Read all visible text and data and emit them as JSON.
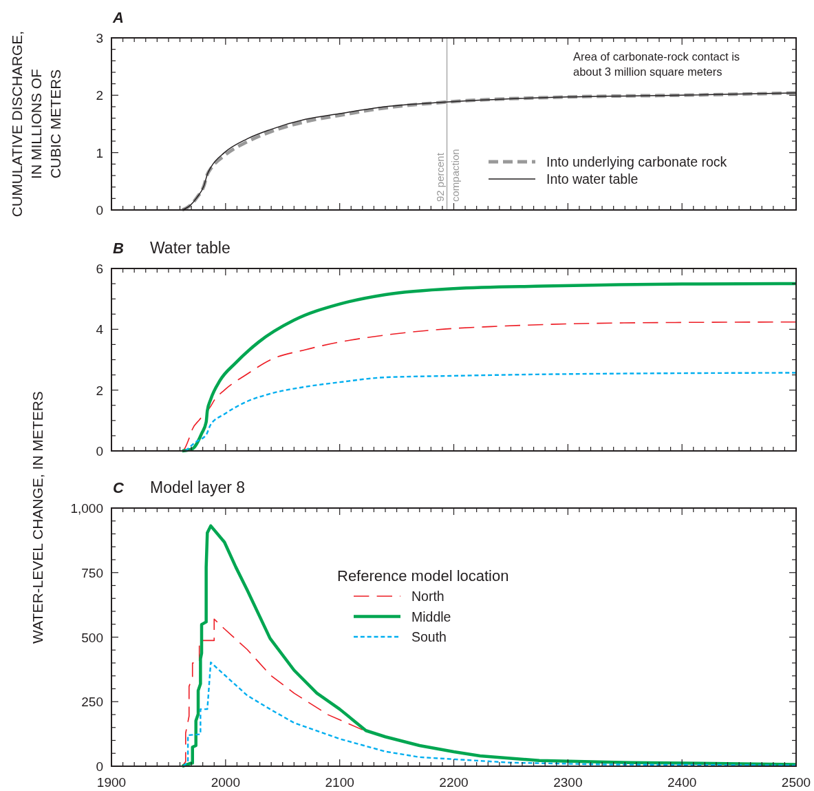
{
  "chart_data": [
    {
      "type": "line",
      "title": "A",
      "ylabel": "CUMULATIVE DISCHARGE, IN MILLIONS OF CUBIC METERS",
      "xlim": [
        1900,
        2500
      ],
      "ylim": [
        0,
        3
      ],
      "tick_labels": "y",
      "legend": "bottom right",
      "grid": false,
      "xticks": [
        1900,
        {
          "value": 1910,
          "label": null
        },
        {
          "value": 1920,
          "label": null
        },
        {
          "value": 1930,
          "label": null
        },
        {
          "value": 1940,
          "label": null
        },
        {
          "value": 1950,
          "label": null
        },
        {
          "value": 1960,
          "label": null
        },
        {
          "value": 1970,
          "label": null
        },
        {
          "value": 1980,
          "label": null
        },
        {
          "value": 1990,
          "label": null
        },
        2000,
        {
          "value": 2010,
          "label": null
        },
        {
          "value": 2020,
          "label": null
        },
        {
          "value": 2030,
          "label": null
        },
        {
          "value": 2040,
          "label": null
        },
        {
          "value": 2050,
          "label": null
        },
        {
          "value": 2060,
          "label": null
        },
        {
          "value": 2070,
          "label": null
        },
        {
          "value": 2080,
          "label": null
        },
        {
          "value": 2090,
          "label": null
        },
        2100,
        {
          "value": 2110,
          "label": null
        },
        {
          "value": 2120,
          "label": null
        },
        {
          "value": 2130,
          "label": null
        },
        {
          "value": 2140,
          "label": null
        },
        {
          "value": 2150,
          "label": null
        },
        {
          "value": 2160,
          "label": null
        },
        {
          "value": 2170,
          "label": null
        },
        {
          "value": 2180,
          "label": null
        },
        {
          "value": 2190,
          "label": null
        },
        2200,
        {
          "value": 2210,
          "label": null
        },
        {
          "value": 2220,
          "label": null
        },
        {
          "value": 2230,
          "label": null
        },
        {
          "value": 2240,
          "label": null
        },
        {
          "value": 2250,
          "label": null
        },
        {
          "value": 2260,
          "label": null
        },
        {
          "value": 2270,
          "label": null
        },
        {
          "value": 2280,
          "label": null
        },
        {
          "value": 2290,
          "label": null
        },
        2300,
        {
          "value": 2310,
          "label": null
        },
        {
          "value": 2320,
          "label": null
        },
        {
          "value": 2330,
          "label": null
        },
        {
          "value": 2340,
          "label": null
        },
        {
          "value": 2350,
          "label": null
        },
        {
          "value": 2360,
          "label": null
        },
        {
          "value": 2370,
          "label": null
        },
        {
          "value": 2380,
          "label": null
        },
        {
          "value": 2390,
          "label": null
        },
        2400,
        {
          "value": 2410,
          "label": null
        },
        {
          "value": 2420,
          "label": null
        },
        {
          "value": 2430,
          "label": null
        },
        {
          "value": 2440,
          "label": null
        },
        {
          "value": 2450,
          "label": null
        },
        {
          "value": 2460,
          "label": null
        },
        {
          "value": 2470,
          "label": null
        },
        {
          "value": 2480,
          "label": null
        },
        {
          "value": 2490,
          "label": null
        },
        2500
      ],
      "yticks": [
        0,
        {
          "value": 0.2,
          "label": null
        },
        {
          "value": 0.4,
          "label": null
        },
        {
          "value": 0.6,
          "label": null
        },
        {
          "value": 0.8,
          "label": null
        },
        1,
        {
          "value": 1.2,
          "label": null
        },
        {
          "value": 1.4,
          "label": null
        },
        {
          "value": 1.6,
          "label": null
        },
        {
          "value": 1.8,
          "label": null
        },
        2,
        {
          "value": 2.2,
          "label": null
        },
        {
          "value": 2.4,
          "label": null
        },
        {
          "value": 2.6,
          "label": null
        },
        {
          "value": 2.8,
          "label": null
        },
        3
      ],
      "series": [
        {
          "name": "Into underlying carbonate rock",
          "color": "#999999",
          "line_style": "dashed",
          "x": [
            1962,
            1969,
            1975,
            1981,
            1984,
            1987,
            1999,
            2019,
            2039,
            2070,
            2100,
            2140,
            2193,
            2300,
            2400,
            2500
          ],
          "values": [
            0,
            0.08,
            0.22,
            0.42,
            0.62,
            0.72,
            0.95,
            1.19,
            1.36,
            1.54,
            1.65,
            1.78,
            1.88,
            1.97,
            2.0,
            2.04
          ]
        },
        {
          "name": "Into water table",
          "color": "#231f20",
          "line_style": "solid",
          "x": [
            1962,
            1969,
            1975,
            1981,
            1984,
            1987,
            1999,
            2019,
            2039,
            2070,
            2100,
            2140,
            2193,
            2300,
            2400,
            2500
          ],
          "values": [
            0,
            0.08,
            0.22,
            0.42,
            0.62,
            0.74,
            1.0,
            1.24,
            1.4,
            1.58,
            1.68,
            1.8,
            1.88,
            1.97,
            2.0,
            2.04
          ]
        }
      ],
      "ref_lines": [
        {
          "axis": "x",
          "value": 2194,
          "label": "92 percent compaction",
          "color": "#999999"
        }
      ],
      "annotations": [
        "Area of carbonate-rock contact is about 3 million square meters"
      ]
    },
    {
      "type": "line",
      "title": "B",
      "subtitle": "Water table",
      "ylabel": "WATER-LEVEL CHANGE, IN METERS",
      "xlim": [
        1900,
        2500
      ],
      "ylim": [
        0,
        6
      ],
      "tick_labels": "y",
      "grid": false,
      "xticks": [
        1900,
        {
          "value": 1910,
          "label": null
        },
        {
          "value": 1920,
          "label": null
        },
        {
          "value": 1930,
          "label": null
        },
        {
          "value": 1940,
          "label": null
        },
        {
          "value": 1950,
          "label": null
        },
        {
          "value": 1960,
          "label": null
        },
        {
          "value": 1970,
          "label": null
        },
        {
          "value": 1980,
          "label": null
        },
        {
          "value": 1990,
          "label": null
        },
        2000,
        {
          "value": 2010,
          "label": null
        },
        {
          "value": 2020,
          "label": null
        },
        {
          "value": 2030,
          "label": null
        },
        {
          "value": 2040,
          "label": null
        },
        {
          "value": 2050,
          "label": null
        },
        {
          "value": 2060,
          "label": null
        },
        {
          "value": 2070,
          "label": null
        },
        {
          "value": 2080,
          "label": null
        },
        {
          "value": 2090,
          "label": null
        },
        2100,
        {
          "value": 2110,
          "label": null
        },
        {
          "value": 2120,
          "label": null
        },
        {
          "value": 2130,
          "label": null
        },
        {
          "value": 2140,
          "label": null
        },
        {
          "value": 2150,
          "label": null
        },
        {
          "value": 2160,
          "label": null
        },
        {
          "value": 2170,
          "label": null
        },
        {
          "value": 2180,
          "label": null
        },
        {
          "value": 2190,
          "label": null
        },
        2200,
        {
          "value": 2210,
          "label": null
        },
        {
          "value": 2220,
          "label": null
        },
        {
          "value": 2230,
          "label": null
        },
        {
          "value": 2240,
          "label": null
        },
        {
          "value": 2250,
          "label": null
        },
        {
          "value": 2260,
          "label": null
        },
        {
          "value": 2270,
          "label": null
        },
        {
          "value": 2280,
          "label": null
        },
        {
          "value": 2290,
          "label": null
        },
        2300,
        {
          "value": 2310,
          "label": null
        },
        {
          "value": 2320,
          "label": null
        },
        {
          "value": 2330,
          "label": null
        },
        {
          "value": 2340,
          "label": null
        },
        {
          "value": 2350,
          "label": null
        },
        {
          "value": 2360,
          "label": null
        },
        {
          "value": 2370,
          "label": null
        },
        {
          "value": 2380,
          "label": null
        },
        {
          "value": 2390,
          "label": null
        },
        2400,
        {
          "value": 2410,
          "label": null
        },
        {
          "value": 2420,
          "label": null
        },
        {
          "value": 2430,
          "label": null
        },
        {
          "value": 2440,
          "label": null
        },
        {
          "value": 2450,
          "label": null
        },
        {
          "value": 2460,
          "label": null
        },
        {
          "value": 2470,
          "label": null
        },
        {
          "value": 2480,
          "label": null
        },
        {
          "value": 2490,
          "label": null
        },
        2500
      ],
      "yticks": [
        0,
        {
          "value": 0.5,
          "label": null
        },
        {
          "value": 1,
          "label": null
        },
        {
          "value": 1.5,
          "label": null
        },
        2,
        {
          "value": 2.5,
          "label": null
        },
        {
          "value": 3,
          "label": null
        },
        {
          "value": 3.5,
          "label": null
        },
        4,
        {
          "value": 4.5,
          "label": null
        },
        {
          "value": 5,
          "label": null
        },
        {
          "value": 5.5,
          "label": null
        },
        6
      ],
      "series": [
        {
          "color": "#ed1c24",
          "line_style": "dashed",
          "x": [
            1962,
            1964,
            1968,
            1971,
            1977,
            1987,
            1990,
            1999,
            2019,
            2039,
            2070,
            2100,
            2140,
            2193,
            2233,
            2349,
            2500
          ],
          "values": [
            0,
            0.07,
            0.41,
            0.72,
            1.02,
            1.47,
            1.66,
            2.0,
            2.53,
            2.99,
            3.33,
            3.58,
            3.81,
            4.01,
            4.09,
            4.21,
            4.24
          ]
        },
        {
          "color": "#00a651",
          "line_style": "solid",
          "x": [
            1962,
            1971,
            1979,
            1983,
            1984,
            1987,
            1995,
            2009,
            2029,
            2060,
            2100,
            2140,
            2200,
            2279,
            2400,
            2500
          ],
          "values": [
            0,
            0.07,
            0.57,
            0.95,
            1.32,
            1.7,
            2.31,
            2.9,
            3.58,
            4.3,
            4.83,
            5.14,
            5.34,
            5.42,
            5.49,
            5.5
          ]
        },
        {
          "color": "#00aeef",
          "line_style": "dotted",
          "x": [
            1965,
            1967,
            1973,
            1983,
            1987,
            1999,
            2019,
            2039,
            2070,
            2100,
            2140,
            2200,
            2279,
            2500
          ],
          "values": [
            0,
            0.07,
            0.27,
            0.53,
            0.87,
            1.21,
            1.63,
            1.88,
            2.11,
            2.26,
            2.42,
            2.47,
            2.52,
            2.57
          ]
        }
      ]
    },
    {
      "type": "line",
      "title": "C",
      "subtitle": "Model layer 8",
      "xlim": [
        1900,
        2500
      ],
      "ylim": [
        0,
        1000
      ],
      "legend": "top",
      "legend_title": "Reference model location",
      "grid": false,
      "xticks": [
        1900,
        {
          "value": 1910,
          "label": null
        },
        {
          "value": 1920,
          "label": null
        },
        {
          "value": 1930,
          "label": null
        },
        {
          "value": 1940,
          "label": null
        },
        {
          "value": 1950,
          "label": null
        },
        {
          "value": 1960,
          "label": null
        },
        {
          "value": 1970,
          "label": null
        },
        {
          "value": 1980,
          "label": null
        },
        {
          "value": 1990,
          "label": null
        },
        2000,
        {
          "value": 2010,
          "label": null
        },
        {
          "value": 2020,
          "label": null
        },
        {
          "value": 2030,
          "label": null
        },
        {
          "value": 2040,
          "label": null
        },
        {
          "value": 2050,
          "label": null
        },
        {
          "value": 2060,
          "label": null
        },
        {
          "value": 2070,
          "label": null
        },
        {
          "value": 2080,
          "label": null
        },
        {
          "value": 2090,
          "label": null
        },
        2100,
        {
          "value": 2110,
          "label": null
        },
        {
          "value": 2120,
          "label": null
        },
        {
          "value": 2130,
          "label": null
        },
        {
          "value": 2140,
          "label": null
        },
        {
          "value": 2150,
          "label": null
        },
        {
          "value": 2160,
          "label": null
        },
        {
          "value": 2170,
          "label": null
        },
        {
          "value": 2180,
          "label": null
        },
        {
          "value": 2190,
          "label": null
        },
        2200,
        {
          "value": 2210,
          "label": null
        },
        {
          "value": 2220,
          "label": null
        },
        {
          "value": 2230,
          "label": null
        },
        {
          "value": 2240,
          "label": null
        },
        {
          "value": 2250,
          "label": null
        },
        {
          "value": 2260,
          "label": null
        },
        {
          "value": 2270,
          "label": null
        },
        {
          "value": 2280,
          "label": null
        },
        {
          "value": 2290,
          "label": null
        },
        2300,
        {
          "value": 2310,
          "label": null
        },
        {
          "value": 2320,
          "label": null
        },
        {
          "value": 2330,
          "label": null
        },
        {
          "value": 2340,
          "label": null
        },
        {
          "value": 2350,
          "label": null
        },
        {
          "value": 2360,
          "label": null
        },
        {
          "value": 2370,
          "label": null
        },
        {
          "value": 2380,
          "label": null
        },
        {
          "value": 2390,
          "label": null
        },
        2400,
        {
          "value": 2410,
          "label": null
        },
        {
          "value": 2420,
          "label": null
        },
        {
          "value": 2430,
          "label": null
        },
        {
          "value": 2440,
          "label": null
        },
        {
          "value": 2450,
          "label": null
        },
        {
          "value": 2460,
          "label": null
        },
        {
          "value": 2470,
          "label": null
        },
        {
          "value": 2480,
          "label": null
        },
        {
          "value": 2490,
          "label": null
        },
        2500
      ],
      "yticks": [
        0,
        {
          "value": 50,
          "label": null
        },
        {
          "value": 100,
          "label": null
        },
        {
          "value": 150,
          "label": null
        },
        {
          "value": 200,
          "label": null
        },
        250,
        {
          "value": 300,
          "label": null
        },
        {
          "value": 350,
          "label": null
        },
        {
          "value": 400,
          "label": null
        },
        {
          "value": 450,
          "label": null
        },
        500,
        {
          "value": 550,
          "label": null
        },
        {
          "value": 600,
          "label": null
        },
        {
          "value": 650,
          "label": null
        },
        {
          "value": 700,
          "label": null
        },
        750,
        {
          "value": 800,
          "label": null
        },
        {
          "value": 850,
          "label": null
        },
        {
          "value": 900,
          "label": null
        },
        {
          "value": 950,
          "label": null
        },
        {
          "value": 1000,
          "label": "1,000"
        }
      ],
      "series": [
        {
          "name": "North",
          "color": "#ed1c24",
          "line_style": "dashed",
          "x": [
            1962,
            1965,
            1965,
            1968,
            1968,
            1971,
            1971,
            1977,
            1977,
            1990,
            1990,
            1999,
            2019,
            2039,
            2060,
            2090,
            2120
          ],
          "values": [
            0,
            18,
            128,
            194,
            309,
            346,
            400,
            400,
            487,
            487,
            570,
            532,
            452,
            354,
            283,
            199,
            141
          ]
        },
        {
          "name": "Middle",
          "color": "#00a651",
          "line_style": "solid",
          "x": [
            1962,
            1970,
            1971,
            1971,
            1974,
            1974,
            1976,
            1976,
            1978,
            1978,
            1979,
            1979,
            1983,
            1983,
            1984,
            1987,
            1999,
            2009,
            2019,
            2039,
            2060,
            2080,
            2100,
            2123,
            2140,
            2170,
            2200,
            2223,
            2275,
            2354,
            2500
          ],
          "values": [
            0,
            12,
            12,
            74,
            80,
            176,
            202,
            293,
            319,
            416,
            438,
            549,
            559,
            771,
            904,
            931,
            868,
            771,
            682,
            495,
            372,
            283,
            221,
            138,
            114,
            80,
            56,
            40,
            22,
            14,
            7
          ]
        },
        {
          "name": "South",
          "color": "#00aeef",
          "line_style": "dotted",
          "x": [
            1963,
            1967,
            1967,
            1978,
            1978,
            1984,
            1985,
            1987,
            1999,
            2019,
            2039,
            2060,
            2100,
            2140,
            2170,
            2249,
            2328,
            2500
          ],
          "values": [
            0,
            17,
            120,
            124,
            221,
            221,
            279,
            402,
            354,
            274,
            221,
            168,
            106,
            57,
            35,
            14,
            7,
            3
          ]
        }
      ]
    }
  ]
}
